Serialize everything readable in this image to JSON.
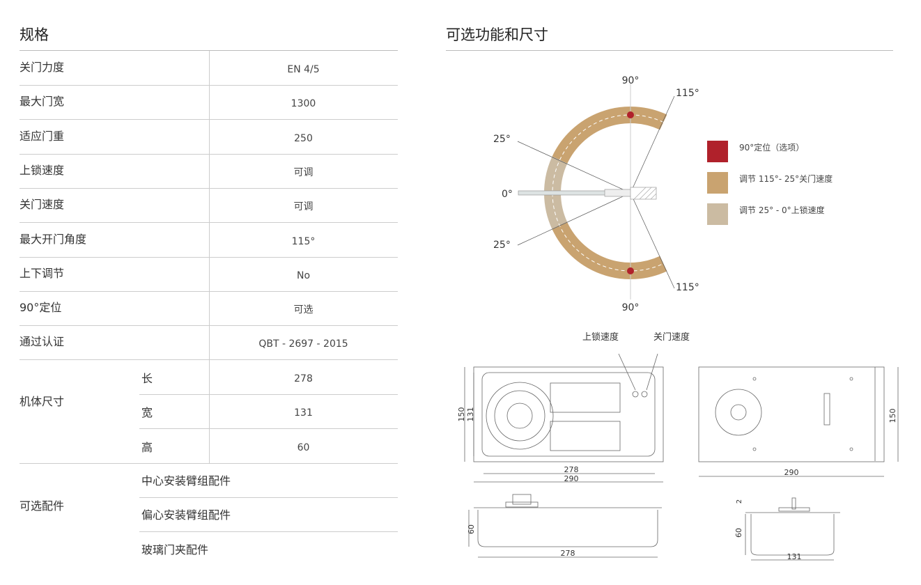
{
  "left": {
    "title": "规格",
    "rows": [
      {
        "label": "关门力度",
        "value": "EN 4/5"
      },
      {
        "label": "最大门宽",
        "value": "1300"
      },
      {
        "label": "适应门重",
        "value": "250"
      },
      {
        "label": "上锁速度",
        "value": "可调"
      },
      {
        "label": "关门速度",
        "value": "可调"
      },
      {
        "label": "最大开门角度",
        "value": "115°"
      },
      {
        "label": "上下调节",
        "value": "No"
      },
      {
        "label": "90°定位",
        "value": "可选"
      },
      {
        "label": "通过认证",
        "value": "QBT - 2697 - 2015"
      }
    ],
    "size": {
      "label": "机体尺寸",
      "items": [
        {
          "label": "长",
          "value": "278"
        },
        {
          "label": "宽",
          "value": "131"
        },
        {
          "label": "高",
          "value": "60"
        }
      ]
    },
    "accessories": {
      "label": "可选配件",
      "items": [
        "中心安装臂组配件",
        "偏心安装臂组配件",
        "玻璃门夹配件"
      ]
    }
  },
  "right": {
    "title": "可选功能和尺寸",
    "angles": {
      "top90": "90°",
      "top115": "115°",
      "top25": "25°",
      "zero": "0°",
      "bot25": "25°",
      "bot115": "115°",
      "bot90": "90°"
    },
    "legend": [
      {
        "label": "90°定位（选项）",
        "color": "#b0212b"
      },
      {
        "label": "调节 115°- 25°关门速度",
        "color": "#c9a370"
      },
      {
        "label": "调节  25°  - 0°上锁速度",
        "color": "#cbbba2"
      }
    ],
    "drawing": {
      "lock_speed": "上锁速度",
      "close_speed": "关门速度",
      "top_w1": "278",
      "top_w2": "290",
      "top_h1": "150",
      "top_h2": "131",
      "bottom_w": "290",
      "bottom_h": "150",
      "side_h": "60",
      "side_w": "278",
      "end_top": "2",
      "end_h": "60",
      "end_w": "131"
    }
  }
}
